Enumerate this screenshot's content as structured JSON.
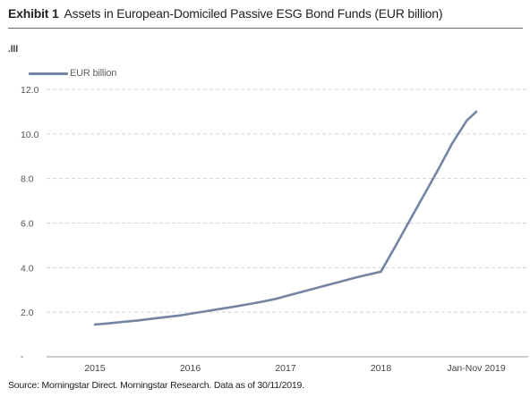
{
  "header": {
    "exhibit": "Exhibit 1",
    "title": "Assets in European-Domiciled Passive ESG Bond Funds (EUR billion)"
  },
  "decorations": {
    "bars_icon": ".lll"
  },
  "footer": {
    "source": "Source: Morningstar Direct. Morningstar Research. Data as of 30/11/2019."
  },
  "chart_data": {
    "type": "line",
    "categories": [
      "2015",
      "2016",
      "2017",
      "2018",
      "Jan-Nov 2019"
    ],
    "series": [
      {
        "name": "EUR billion",
        "color": "#7485a3",
        "x": [
          0,
          0.15,
          0.3,
          0.45,
          0.6,
          0.75,
          0.9,
          1,
          1.15,
          1.3,
          1.45,
          1.6,
          1.75,
          1.9,
          2,
          2.15,
          2.3,
          2.45,
          2.6,
          2.75,
          2.9,
          3,
          3.15,
          3.3,
          3.45,
          3.6,
          3.75,
          3.9,
          4
        ],
        "values": [
          1.45,
          1.5,
          1.57,
          1.63,
          1.71,
          1.78,
          1.86,
          1.93,
          2.03,
          2.14,
          2.24,
          2.35,
          2.47,
          2.6,
          2.72,
          2.89,
          3.06,
          3.23,
          3.4,
          3.57,
          3.72,
          3.82,
          4.95,
          6.1,
          7.25,
          8.4,
          9.6,
          10.6,
          11.0
        ]
      }
    ],
    "yticks": [
      "2.0",
      "4.0",
      "6.0",
      "8.0",
      "10.0",
      "12.0"
    ],
    "ylim": [
      0,
      12
    ],
    "bottom_tick_label": "-",
    "grid": "horizontal-dashed",
    "legend_position": "top-left"
  }
}
